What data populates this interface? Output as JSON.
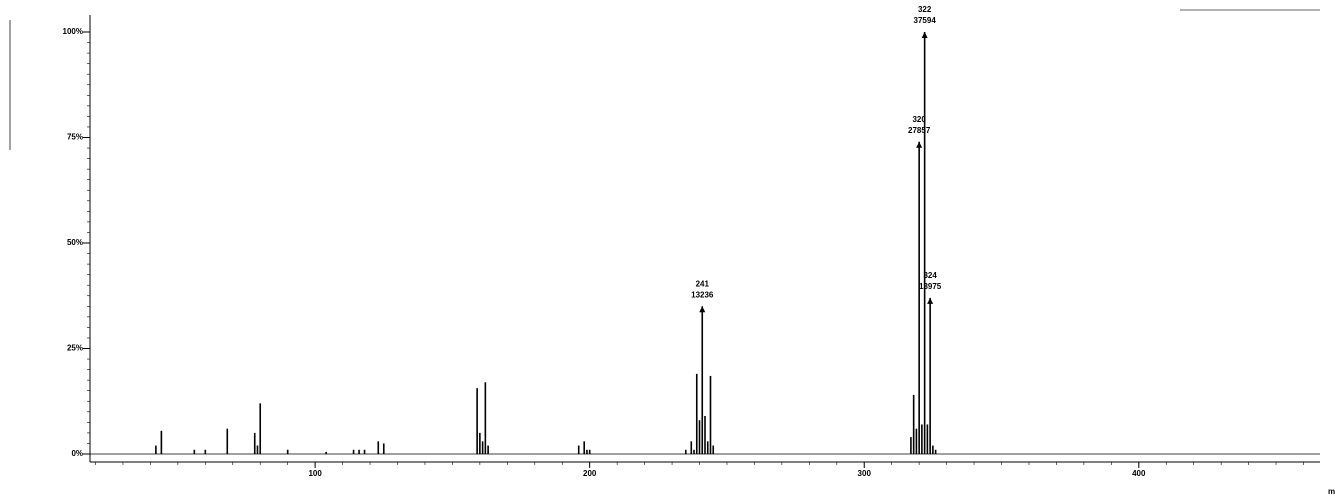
{
  "chart_data": {
    "type": "stem",
    "x_label": "m",
    "color": "#000000",
    "x": [
      42,
      44,
      56,
      60,
      68,
      78,
      79,
      80,
      90,
      104,
      114,
      116,
      118,
      123,
      125,
      159,
      160,
      161,
      162,
      163,
      196,
      198,
      199,
      200,
      235,
      237,
      238,
      239,
      240,
      241,
      242,
      243,
      244,
      245,
      317,
      318,
      319,
      320,
      321,
      322,
      323,
      324,
      325,
      326
    ],
    "values": [
      2,
      5.5,
      1,
      1,
      6,
      5,
      2,
      12,
      1,
      0.5,
      1,
      1,
      1,
      3,
      2.5,
      15.6,
      5,
      3,
      17,
      2,
      2,
      3,
      1,
      1,
      1,
      3,
      1,
      19,
      8,
      35,
      9,
      3,
      18.5,
      2,
      4,
      14,
      6,
      74,
      7,
      100,
      7,
      37,
      2,
      1
    ],
    "annotations": [
      {
        "mz": 241,
        "intensity": 13236
      },
      {
        "mz": 320,
        "intensity": 27857
      },
      {
        "mz": 322,
        "intensity": 37594
      },
      {
        "mz": 324,
        "intensity": 13975
      }
    ],
    "xlim": [
      18,
      466
    ],
    "ylim": [
      0,
      100
    ],
    "xticks": [
      100,
      200,
      300,
      400
    ],
    "yticks": [
      {
        "value": 0,
        "label": "0%"
      },
      {
        "value": 25,
        "label": "25%"
      },
      {
        "value": 50,
        "label": "50%"
      },
      {
        "value": 75,
        "label": "75%"
      },
      {
        "value": 100,
        "label": "100%"
      }
    ]
  }
}
